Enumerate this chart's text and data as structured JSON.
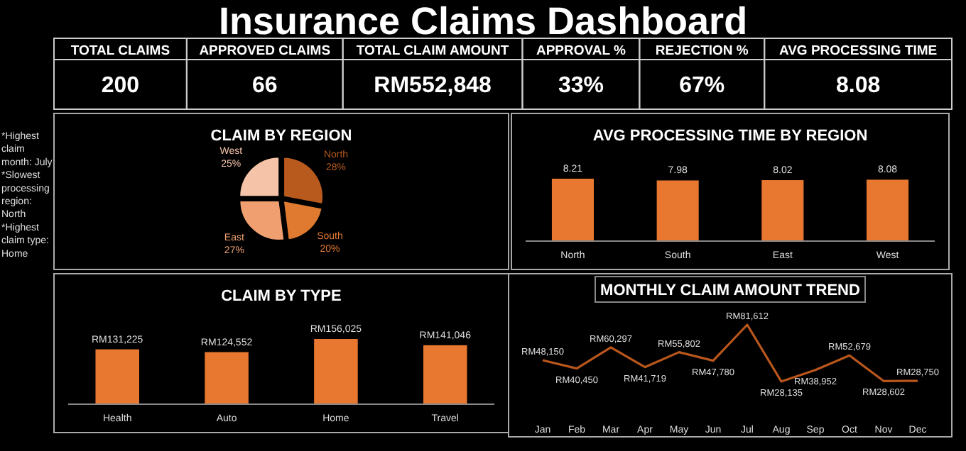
{
  "chart_data": [
    {
      "type": "other",
      "title": "Insurance Claims Dashboard",
      "categories": [
        "TOTAL CLAIMS",
        "APPROVED CLAIMS",
        "TOTAL CLAIM AMOUNT",
        "APPROVAL %",
        "REJECTION %",
        "AVG PROCESSING TIME"
      ],
      "values": [
        200,
        66,
        552848,
        33,
        67,
        8.08
      ],
      "value_labels": [
        "200",
        "66",
        "RM552,848",
        "33%",
        "67%",
        "8.08"
      ],
      "annotations": [
        "*Highest claim month: July",
        "*Slowest processing region: North",
        "*Highest claim type: Home"
      ]
    },
    {
      "type": "pie",
      "title": "CLAIM BY REGION",
      "categories": [
        "North",
        "South",
        "East",
        "West"
      ],
      "values": [
        28,
        20,
        27,
        25
      ],
      "value_labels": [
        "28%",
        "20%",
        "27%",
        "25%"
      ],
      "colors": [
        "#b85a1e",
        "#e07a30",
        "#f0a070",
        "#f5c4a8"
      ]
    },
    {
      "type": "bar",
      "title": "AVG PROCESSING TIME BY REGION",
      "categories": [
        "North",
        "South",
        "East",
        "West"
      ],
      "values": [
        8.21,
        7.98,
        8.02,
        8.08
      ],
      "color": "#e8782f",
      "data_labels": true,
      "tick_labels": "x"
    },
    {
      "type": "bar",
      "title": "CLAIM BY TYPE",
      "categories": [
        "Health",
        "Auto",
        "Home",
        "Travel"
      ],
      "values": [
        131225,
        124552,
        156025,
        141046
      ],
      "value_labels": [
        "RM131,225",
        "RM124,552",
        "RM156,025",
        "RM141,046"
      ],
      "color": "#e8782f",
      "tick_labels": "x"
    },
    {
      "type": "line",
      "title": "MONTHLY CLAIM AMOUNT TREND",
      "categories": [
        "Jan",
        "Feb",
        "Mar",
        "Apr",
        "May",
        "Jun",
        "Jul",
        "Aug",
        "Sep",
        "Oct",
        "Nov",
        "Dec"
      ],
      "values": [
        48150,
        40450,
        60297,
        41719,
        55802,
        47780,
        81612,
        28135,
        38952,
        52679,
        28602,
        28750
      ],
      "value_labels": [
        "RM48,150",
        "RM40,450",
        "RM60,297",
        "RM41,719",
        "RM55,802",
        "RM47,780",
        "RM81,612",
        "RM28,135",
        "RM38,952",
        "RM52,679",
        "RM28,602",
        "RM28,750"
      ],
      "color": "#b8561c",
      "tick_labels": "x"
    }
  ]
}
